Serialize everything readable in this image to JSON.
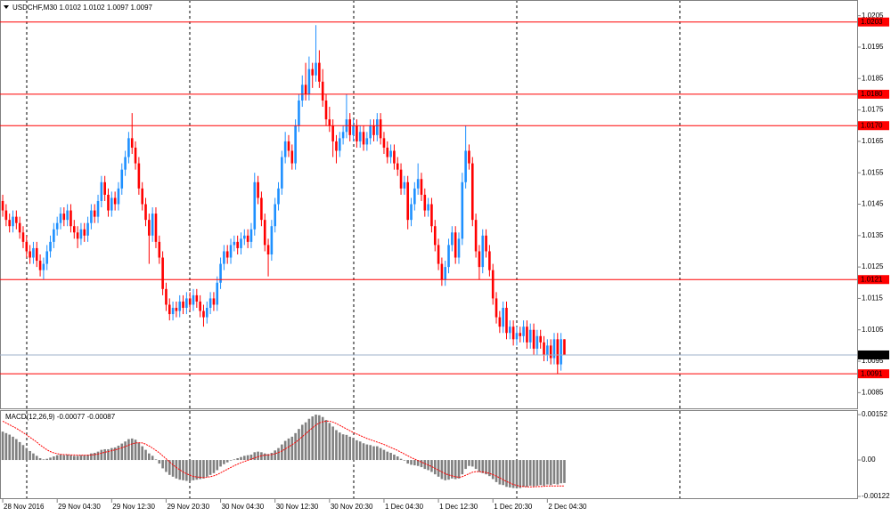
{
  "chart_data": [
    {
      "type": "candlestick",
      "title": "USDCHF,M30  1.0102 1.0102 1.0097 1.0097",
      "xlim": [
        -0.8,
        251
      ],
      "xticks": [
        {
          "value": 0,
          "label": "28 Nov 2016"
        },
        {
          "value": 16,
          "label": "29 Nov 04:30"
        },
        {
          "value": 32,
          "label": "29 Nov 12:30"
        },
        {
          "value": 48,
          "label": "29 Nov 20:30"
        },
        {
          "value": 64,
          "label": "30 Nov 04:30"
        },
        {
          "value": 80,
          "label": "30 Nov 12:30"
        },
        {
          "value": 96,
          "label": "30 Nov 20:30"
        },
        {
          "value": 112,
          "label": "1 Dec 04:30"
        },
        {
          "value": 128,
          "label": "1 Dec 12:30"
        },
        {
          "value": 144,
          "label": "1 Dec 20:30"
        },
        {
          "value": 160,
          "label": "2 Dec 04:30"
        }
      ],
      "ylim": [
        1.008,
        1.021
      ],
      "yticks": [
        1.0205,
        1.0195,
        1.0185,
        1.0175,
        1.0165,
        1.0155,
        1.0145,
        1.0135,
        1.0125,
        1.0115,
        1.0105,
        1.0095,
        1.0085
      ],
      "up_color": "#1e90ff",
      "down_color": "#ff0000",
      "levels": [
        1.0203,
        {
          "value": 1.018,
          "label": "1.0180"
        },
        {
          "value": 1.017,
          "label": "1.0170"
        },
        1.0121,
        1.0091
      ],
      "level_color": "#ff0000",
      "current_price": 1.0097,
      "current_price_color": "#9fb0c8",
      "open": [
        1.0146,
        1.0143,
        1.014,
        1.0138,
        1.0141,
        1.0139,
        1.0136,
        1.0133,
        1.013,
        1.0128,
        1.0131,
        1.0127,
        1.0124,
        1.0126,
        1.013,
        1.0133,
        1.0137,
        1.0139,
        1.0142,
        1.014,
        1.0143,
        1.0138,
        1.0136,
        1.0134,
        1.0137,
        1.0135,
        1.0139,
        1.0143,
        1.0141,
        1.0146,
        1.0152,
        1.0148,
        1.0143,
        1.0147,
        1.0145,
        1.015,
        1.0156,
        1.016,
        1.0166,
        1.0163,
        1.0158,
        1.015,
        1.0145,
        1.014,
        1.0135,
        1.0142,
        1.0133,
        1.0128,
        1.0118,
        1.0113,
        1.011,
        1.0112,
        1.0111,
        1.0114,
        1.0112,
        1.0115,
        1.0113,
        1.0116,
        1.0114,
        1.0111,
        1.0109,
        1.0112,
        1.0115,
        1.0113,
        1.012,
        1.0126,
        1.013,
        1.0128,
        1.0132,
        1.0133,
        1.0131,
        1.0134,
        1.0135,
        1.0133,
        1.0137,
        1.0152,
        1.0147,
        1.014,
        1.0132,
        1.0129,
        1.0138,
        1.0145,
        1.015,
        1.016,
        1.0165,
        1.0162,
        1.0158,
        1.017,
        1.0178,
        1.0183,
        1.018,
        1.0188,
        1.0186,
        1.019,
        1.0184,
        1.0178,
        1.0172,
        1.017,
        1.0165,
        1.0162,
        1.0166,
        1.0168,
        1.0172,
        1.0167,
        1.017,
        1.0165,
        1.0168,
        1.0164,
        1.0166,
        1.017,
        1.0167,
        1.0172,
        1.0166,
        1.0163,
        1.016,
        1.0162,
        1.0158,
        1.0156,
        1.015,
        1.0152,
        1.014,
        1.0145,
        1.015,
        1.0153,
        1.0148,
        1.0143,
        1.0145,
        1.0138,
        1.0132,
        1.0126,
        1.0121,
        1.0125,
        1.0132,
        1.0136,
        1.0128,
        1.0134,
        1.0152,
        1.0162,
        1.0158,
        1.014,
        1.013,
        1.0125,
        1.0135,
        1.013,
        1.0124,
        1.0115,
        1.0109,
        1.0106,
        1.0112,
        1.0104,
        1.0106,
        1.0102,
        1.0104,
        1.0103,
        1.0106,
        1.0101,
        1.0105,
        1.0099,
        1.0103,
        1.0101,
        1.0097,
        1.01,
        1.0096,
        1.0102,
        1.0094,
        1.0102
      ],
      "high": [
        1.0148,
        1.0145,
        1.0142,
        1.0143,
        1.0143,
        1.0141,
        1.0138,
        1.0135,
        1.0132,
        1.0133,
        1.0133,
        1.0129,
        1.0128,
        1.0132,
        1.0135,
        1.0139,
        1.0141,
        1.0144,
        1.0144,
        1.0145,
        1.0145,
        1.014,
        1.0138,
        1.0139,
        1.0139,
        1.0141,
        1.0145,
        1.0145,
        1.0148,
        1.0154,
        1.0154,
        1.015,
        1.0149,
        1.0149,
        1.0152,
        1.0158,
        1.0162,
        1.0168,
        1.0174,
        1.0165,
        1.016,
        1.0152,
        1.0147,
        1.0142,
        1.0144,
        1.0144,
        1.0135,
        1.013,
        1.012,
        1.0115,
        1.0114,
        1.0114,
        1.0116,
        1.0116,
        1.0117,
        1.0117,
        1.0118,
        1.0118,
        1.0116,
        1.0113,
        1.0114,
        1.0117,
        1.0117,
        1.0122,
        1.0128,
        1.0132,
        1.0132,
        1.0134,
        1.0135,
        1.0135,
        1.0136,
        1.0137,
        1.0137,
        1.0139,
        1.0155,
        1.0154,
        1.0149,
        1.0142,
        1.0134,
        1.014,
        1.0147,
        1.0152,
        1.0162,
        1.0168,
        1.0167,
        1.0164,
        1.0172,
        1.018,
        1.0186,
        1.019,
        1.0192,
        1.019,
        1.0202,
        1.0194,
        1.0188,
        1.018,
        1.0176,
        1.0172,
        1.0167,
        1.0168,
        1.017,
        1.018,
        1.0174,
        1.0172,
        1.0172,
        1.017,
        1.017,
        1.0168,
        1.0172,
        1.0172,
        1.0174,
        1.0174,
        1.0168,
        1.0165,
        1.0164,
        1.0164,
        1.016,
        1.0158,
        1.0154,
        1.0154,
        1.0147,
        1.0152,
        1.0158,
        1.0155,
        1.015,
        1.0147,
        1.0147,
        1.014,
        1.0134,
        1.0128,
        1.0127,
        1.0134,
        1.0138,
        1.0138,
        1.0136,
        1.0155,
        1.017,
        1.0164,
        1.016,
        1.0142,
        1.0132,
        1.0137,
        1.0137,
        1.0132,
        1.0126,
        1.0117,
        1.0111,
        1.0114,
        1.0114,
        1.0108,
        1.0108,
        1.0106,
        1.0106,
        1.0108,
        1.0108,
        1.0107,
        1.0107,
        1.0105,
        1.0105,
        1.0103,
        1.0102,
        1.0102,
        1.0104,
        1.0104,
        1.0104,
        1.0102
      ],
      "low": [
        1.0141,
        1.0138,
        1.0136,
        1.0136,
        1.0137,
        1.0134,
        1.0131,
        1.0128,
        1.0126,
        1.0126,
        1.0125,
        1.0122,
        1.0121,
        1.0124,
        1.0128,
        1.0131,
        1.0135,
        1.0137,
        1.0138,
        1.0138,
        1.0136,
        1.0134,
        1.0131,
        1.0132,
        1.0133,
        1.0133,
        1.0137,
        1.0139,
        1.0139,
        1.0144,
        1.0146,
        1.0141,
        1.0141,
        1.0143,
        1.0143,
        1.0148,
        1.0154,
        1.0158,
        1.0161,
        1.0156,
        1.0148,
        1.0143,
        1.0138,
        1.0126,
        1.0133,
        1.0131,
        1.0126,
        1.0116,
        1.0111,
        1.0108,
        1.0108,
        1.0109,
        1.0109,
        1.011,
        1.011,
        1.0111,
        1.0111,
        1.0112,
        1.0109,
        1.0106,
        1.0107,
        1.011,
        1.0111,
        1.0111,
        1.0118,
        1.0124,
        1.0126,
        1.0126,
        1.013,
        1.0129,
        1.0129,
        1.0132,
        1.0131,
        1.0131,
        1.0135,
        1.0145,
        1.0138,
        1.013,
        1.0122,
        1.0127,
        1.0136,
        1.0143,
        1.0148,
        1.0158,
        1.016,
        1.0156,
        1.0156,
        1.0168,
        1.0176,
        1.0178,
        1.0178,
        1.0182,
        1.0184,
        1.0182,
        1.0176,
        1.017,
        1.0168,
        1.016,
        1.0158,
        1.016,
        1.0164,
        1.0166,
        1.0165,
        1.0165,
        1.0163,
        1.0163,
        1.0162,
        1.0162,
        1.0164,
        1.0165,
        1.0165,
        1.0164,
        1.0161,
        1.0158,
        1.0158,
        1.0156,
        1.0154,
        1.0148,
        1.0148,
        1.0137,
        1.0138,
        1.0143,
        1.0148,
        1.0146,
        1.0141,
        1.0141,
        1.0136,
        1.013,
        1.0124,
        1.0119,
        1.0119,
        1.0123,
        1.013,
        1.0126,
        1.0126,
        1.0132,
        1.015,
        1.0156,
        1.0138,
        1.0128,
        1.0121,
        1.0123,
        1.0128,
        1.0122,
        1.0113,
        1.0107,
        1.0104,
        1.0104,
        1.0102,
        1.0102,
        1.01,
        1.01,
        1.0101,
        1.0101,
        1.0099,
        1.0099,
        1.0097,
        1.0097,
        1.0099,
        1.0095,
        1.0095,
        1.0094,
        1.0094,
        1.0091,
        1.0092,
        1.0097
      ],
      "close": [
        1.0143,
        1.014,
        1.0138,
        1.0141,
        1.0139,
        1.0136,
        1.0133,
        1.013,
        1.0128,
        1.0131,
        1.0127,
        1.0124,
        1.0126,
        1.013,
        1.0133,
        1.0137,
        1.0139,
        1.0142,
        1.014,
        1.0143,
        1.0138,
        1.0136,
        1.0134,
        1.0137,
        1.0135,
        1.0139,
        1.0143,
        1.0141,
        1.0146,
        1.0152,
        1.0148,
        1.0143,
        1.0147,
        1.0145,
        1.015,
        1.0156,
        1.016,
        1.0166,
        1.0163,
        1.0158,
        1.015,
        1.0145,
        1.014,
        1.0135,
        1.0142,
        1.0133,
        1.0128,
        1.0118,
        1.0113,
        1.011,
        1.0112,
        1.0111,
        1.0114,
        1.0112,
        1.0115,
        1.0113,
        1.0116,
        1.0114,
        1.0111,
        1.0109,
        1.0112,
        1.0115,
        1.0113,
        1.012,
        1.0126,
        1.013,
        1.0128,
        1.0132,
        1.0133,
        1.0131,
        1.0134,
        1.0135,
        1.0133,
        1.0137,
        1.0152,
        1.0147,
        1.014,
        1.0132,
        1.0129,
        1.0138,
        1.0145,
        1.015,
        1.016,
        1.0165,
        1.0162,
        1.0158,
        1.017,
        1.0178,
        1.0183,
        1.018,
        1.0188,
        1.0186,
        1.019,
        1.0184,
        1.0178,
        1.0172,
        1.017,
        1.0165,
        1.0162,
        1.0166,
        1.0168,
        1.0172,
        1.0167,
        1.017,
        1.0165,
        1.0168,
        1.0164,
        1.0166,
        1.017,
        1.0167,
        1.0172,
        1.0166,
        1.0163,
        1.016,
        1.0162,
        1.0158,
        1.0156,
        1.015,
        1.0152,
        1.014,
        1.0145,
        1.015,
        1.0153,
        1.0148,
        1.0143,
        1.0145,
        1.0138,
        1.0132,
        1.0126,
        1.0121,
        1.0125,
        1.0132,
        1.0136,
        1.0128,
        1.0134,
        1.0152,
        1.0162,
        1.0158,
        1.014,
        1.013,
        1.0125,
        1.0135,
        1.013,
        1.0124,
        1.0115,
        1.0109,
        1.0106,
        1.0112,
        1.0104,
        1.0106,
        1.0102,
        1.0104,
        1.0103,
        1.0106,
        1.0101,
        1.0105,
        1.0099,
        1.0103,
        1.0101,
        1.0097,
        1.01,
        1.0096,
        1.0102,
        1.0094,
        1.0102,
        1.0097
      ]
    },
    {
      "type": "macd",
      "title": "MACD(12,26,9) -0.00077 -0.00087",
      "xlim": [
        -0.8,
        251
      ],
      "ylim": [
        -0.00131,
        0.00167
      ],
      "yticks": [
        0.00152,
        {
          "value": 0,
          "label": "0.00"
        },
        -0.00122
      ],
      "histogram_color": "#808080",
      "signal_color": "#ff0000",
      "histogram": [
        0.00095,
        0.0009,
        0.00085,
        0.00078,
        0.0007,
        0.0006,
        0.0005,
        0.0004,
        0.0003,
        0.00022,
        0.00014,
        6e-05,
        2e-05,
        4e-05,
        8e-05,
        0.00012,
        0.00016,
        0.00018,
        0.00016,
        0.00018,
        0.00016,
        0.00014,
        0.00014,
        0.00016,
        0.00016,
        0.00018,
        0.00022,
        0.00024,
        0.00028,
        0.00034,
        0.00036,
        0.00036,
        0.0004,
        0.00042,
        0.00048,
        0.00055,
        0.00062,
        0.0007,
        0.00072,
        0.00068,
        0.00058,
        0.00046,
        0.00034,
        0.00022,
        0.00014,
        2e-05,
        -0.00012,
        -0.00028,
        -0.0004,
        -0.0005,
        -0.00056,
        -0.00062,
        -0.00066,
        -0.00068,
        -0.0007,
        -0.0007,
        -0.00068,
        -0.00066,
        -0.00064,
        -0.00062,
        -0.00056,
        -0.0005,
        -0.00044,
        -0.00034,
        -0.00022,
        -0.00014,
        -8e-05,
        -2e-05,
        2e-05,
        6e-05,
        0.0001,
        0.00014,
        0.00016,
        0.00018,
        0.00026,
        0.00028,
        0.00026,
        0.00022,
        0.0002,
        0.00024,
        0.00032,
        0.0004,
        0.00052,
        0.00064,
        0.00072,
        0.00078,
        0.0009,
        0.00104,
        0.00118,
        0.00126,
        0.00138,
        0.00146,
        0.00152,
        0.0015,
        0.00144,
        0.00134,
        0.00124,
        0.00112,
        0.001,
        0.00092,
        0.00086,
        0.00084,
        0.00078,
        0.00074,
        0.00066,
        0.00062,
        0.00056,
        0.00052,
        0.0005,
        0.00046,
        0.00046,
        0.0004,
        0.00034,
        0.00028,
        0.00024,
        0.00018,
        0.00012,
        4e-05,
        -2e-05,
        -0.00012,
        -0.00016,
        -0.00018,
        -0.0002,
        -0.00024,
        -0.0003,
        -0.00034,
        -0.0004,
        -0.00048,
        -0.00056,
        -0.00064,
        -0.00068,
        -0.00066,
        -0.00062,
        -0.00064,
        -0.00062,
        -0.00048,
        -0.0003,
        -0.0002,
        -0.00022,
        -0.0003,
        -0.0004,
        -0.00044,
        -0.00048,
        -0.00054,
        -0.00064,
        -0.00074,
        -0.00082,
        -0.00084,
        -0.0009,
        -0.00092,
        -0.00094,
        -0.00094,
        -0.00094,
        -0.0009,
        -0.0009,
        -0.00086,
        -0.00088,
        -0.00086,
        -0.00084,
        -0.00086,
        -0.00082,
        -0.00084,
        -0.0008,
        -0.00082,
        -0.00078,
        -0.00077
      ],
      "signal": [
        0.0013,
        0.00124,
        0.00118,
        0.00112,
        0.00106,
        0.00099,
        0.00092,
        0.00084,
        0.00076,
        0.00068,
        0.0006,
        0.0005,
        0.00042,
        0.00034,
        0.00028,
        0.00024,
        0.00021,
        0.00019,
        0.00018,
        0.00018,
        0.00017,
        0.00017,
        0.00016,
        0.00016,
        0.00016,
        0.00016,
        0.00017,
        0.00018,
        0.0002,
        0.00023,
        0.00026,
        0.00028,
        0.00031,
        0.00034,
        0.00037,
        0.00041,
        0.00045,
        0.0005,
        0.00054,
        0.00057,
        0.00058,
        0.00057,
        0.00053,
        0.00047,
        0.0004,
        0.00032,
        0.00024,
        0.00014,
        4e-05,
        -6e-05,
        -0.00016,
        -0.00025,
        -0.00033,
        -0.0004,
        -0.00046,
        -0.00051,
        -0.00055,
        -0.00057,
        -0.00058,
        -0.00059,
        -0.00058,
        -0.00056,
        -0.00053,
        -0.00049,
        -0.00043,
        -0.00037,
        -0.00031,
        -0.00025,
        -0.00019,
        -0.00014,
        -9e-05,
        -5e-05,
        -1e-05,
        3e-05,
        7e-05,
        0.00011,
        0.00014,
        0.00016,
        0.00017,
        0.00018,
        0.00021,
        0.00025,
        0.0003,
        0.00037,
        0.00044,
        0.00051,
        0.00059,
        0.00068,
        0.00078,
        0.00088,
        0.00098,
        0.00108,
        0.00117,
        0.00124,
        0.00128,
        0.0013,
        0.0013,
        0.00127,
        0.00122,
        0.00116,
        0.0011,
        0.00104,
        0.00098,
        0.00092,
        0.00087,
        0.00082,
        0.00077,
        0.00072,
        0.00068,
        0.00064,
        0.0006,
        0.00056,
        0.00052,
        0.00047,
        0.00042,
        0.00037,
        0.00032,
        0.00026,
        0.0002,
        0.00014,
        8e-05,
        3e-05,
        -2e-05,
        -7e-05,
        -0.00012,
        -0.00017,
        -0.00022,
        -0.00028,
        -0.00034,
        -0.0004,
        -0.00046,
        -0.0005,
        -0.00053,
        -0.00056,
        -0.00058,
        -0.00056,
        -0.00051,
        -0.00046,
        -0.00041,
        -0.00039,
        -0.00039,
        -0.0004,
        -0.00042,
        -0.00045,
        -0.00049,
        -0.00054,
        -0.0006,
        -0.00066,
        -0.00072,
        -0.00077,
        -0.00082,
        -0.00085,
        -0.00088,
        -0.00089,
        -0.0009,
        -0.0009,
        -0.0009,
        -0.00089,
        -0.00089,
        -0.00088,
        -0.00087,
        -0.00087,
        -0.00087,
        -0.00087,
        -0.00087,
        -0.00087
      ]
    }
  ]
}
